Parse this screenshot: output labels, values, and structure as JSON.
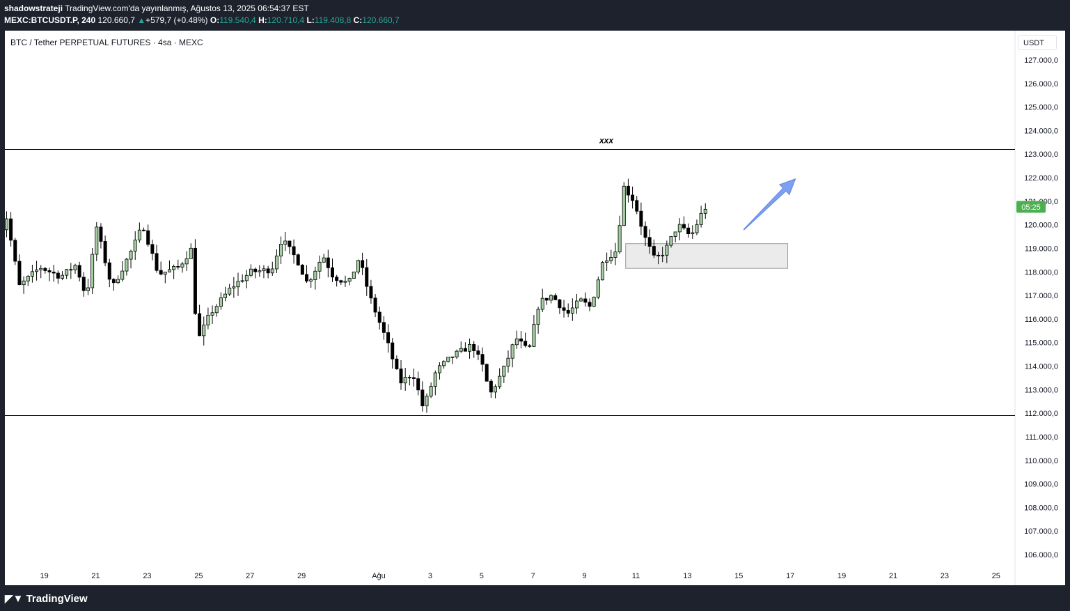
{
  "header": {
    "author": "shadowstrateji",
    "published": "TradingView.com'da yayınlanmış, Ağustos 13, 2025 06:54:37 EST",
    "symbol_line": "MEXC:BTCUSDT.P, 240",
    "last": "120.660,7",
    "change_arrow": "▲",
    "change": "+579,7 (+0.48%)",
    "o_label": "O:",
    "o_value": "119.540,4",
    "h_label": "H:",
    "h_value": "120.710,4",
    "l_label": "L:",
    "l_value": "119.408,8",
    "c_label": "C:",
    "c_value": "120.660,7"
  },
  "chart": {
    "title": "BTC / Tether PERPETUAL FUTURES · 4sa · MEXC",
    "currency": "USDT",
    "countdown": "05:25",
    "annotation": "xxx"
  },
  "chart_data": {
    "type": "candlestick",
    "title": "BTC / Tether PERPETUAL FUTURES · 4sa · MEXC",
    "ylim": [
      105500,
      127500
    ],
    "y_ticks": [
      "127.000,0",
      "126.000,0",
      "125.000,0",
      "124.000,0",
      "123.000,0",
      "122.000,0",
      "121.000,0",
      "120.000,0",
      "119.000,0",
      "118.000,0",
      "117.000,0",
      "116.000,0",
      "115.000,0",
      "114.000,0",
      "113.000,0",
      "112.000,0",
      "111.000,0",
      "110.000,0",
      "109.000,0",
      "108.000,0",
      "107.000,0",
      "106.000,0"
    ],
    "y_tick_values": [
      127000,
      126000,
      125000,
      124000,
      123000,
      122000,
      121000,
      120000,
      119000,
      118000,
      117000,
      116000,
      115000,
      114000,
      113000,
      112000,
      111000,
      110000,
      109000,
      108000,
      107000,
      106000
    ],
    "x_ticks": [
      "19",
      "21",
      "23",
      "25",
      "27",
      "29",
      "Ağu",
      "3",
      "5",
      "7",
      "9",
      "11",
      "13",
      "15",
      "17",
      "19",
      "21",
      "23",
      "25"
    ],
    "x_tick_days": [
      -13,
      -11,
      -9,
      -7,
      -5,
      -3,
      0,
      2,
      4,
      6,
      8,
      10,
      12,
      14,
      16,
      18,
      20,
      22,
      24
    ],
    "waypoints": [
      {
        "d": -14.8,
        "p": 119000
      },
      {
        "d": -14.3,
        "p": 120300
      },
      {
        "d": -13.8,
        "p": 117400
      },
      {
        "d": -13,
        "p": 118200
      },
      {
        "d": -12.2,
        "p": 117800
      },
      {
        "d": -11.6,
        "p": 118300
      },
      {
        "d": -11.2,
        "p": 116900
      },
      {
        "d": -10.8,
        "p": 119900
      },
      {
        "d": -10.2,
        "p": 117300
      },
      {
        "d": -9.4,
        "p": 119000
      },
      {
        "d": -9.0,
        "p": 120000
      },
      {
        "d": -8.4,
        "p": 117900
      },
      {
        "d": -7.6,
        "p": 118200
      },
      {
        "d": -7.1,
        "p": 119000
      },
      {
        "d": -6.9,
        "p": 115000
      },
      {
        "d": -6.4,
        "p": 116200
      },
      {
        "d": -5.6,
        "p": 117300
      },
      {
        "d": -4.8,
        "p": 118000
      },
      {
        "d": -4.0,
        "p": 118100
      },
      {
        "d": -3.6,
        "p": 119400
      },
      {
        "d": -3.0,
        "p": 118500
      },
      {
        "d": -2.6,
        "p": 117500
      },
      {
        "d": -2.0,
        "p": 118700
      },
      {
        "d": -1.6,
        "p": 117800
      },
      {
        "d": -1.0,
        "p": 117500
      },
      {
        "d": -0.6,
        "p": 118600
      },
      {
        "d": -0.2,
        "p": 117000
      },
      {
        "d": 0.5,
        "p": 115000
      },
      {
        "d": 1.0,
        "p": 113300
      },
      {
        "d": 1.5,
        "p": 113700
      },
      {
        "d": 1.9,
        "p": 112200
      },
      {
        "d": 2.4,
        "p": 113800
      },
      {
        "d": 3.0,
        "p": 114400
      },
      {
        "d": 3.8,
        "p": 114900
      },
      {
        "d": 4.2,
        "p": 114000
      },
      {
        "d": 4.5,
        "p": 112800
      },
      {
        "d": 5.0,
        "p": 113800
      },
      {
        "d": 5.5,
        "p": 115200
      },
      {
        "d": 6.0,
        "p": 114600
      },
      {
        "d": 6.4,
        "p": 116700
      },
      {
        "d": 6.9,
        "p": 117000
      },
      {
        "d": 7.5,
        "p": 116200
      },
      {
        "d": 8.0,
        "p": 116800
      },
      {
        "d": 8.4,
        "p": 116500
      },
      {
        "d": 8.9,
        "p": 118500
      },
      {
        "d": 9.4,
        "p": 118900
      },
      {
        "d": 9.7,
        "p": 121600
      },
      {
        "d": 10.1,
        "p": 121000
      },
      {
        "d": 10.5,
        "p": 119500
      },
      {
        "d": 10.9,
        "p": 118500
      },
      {
        "d": 11.3,
        "p": 118900
      },
      {
        "d": 11.8,
        "p": 120000
      },
      {
        "d": 12.3,
        "p": 119500
      },
      {
        "d": 12.8,
        "p": 120660
      }
    ],
    "levels": [
      {
        "value": 123200,
        "label": "xxx"
      },
      {
        "value": 111900
      }
    ],
    "zone": {
      "d_start": 9.6,
      "d_end": 15.9,
      "top": 119200,
      "bottom": 118150
    },
    "arrow": {
      "d_start": 14.2,
      "p_start": 119800,
      "d_end": 16.2,
      "p_end": 121950
    },
    "last_price": 120660.7,
    "last_price_label": "05:25",
    "colors": {
      "up_fill": "#a3cfa1",
      "down_fill": "#000000",
      "outline": "#000000",
      "arrow": "#7ea0f0",
      "zone_fill": "#ebebeb",
      "zone_border": "#9e9e9e",
      "price_tag": "#4caf50"
    }
  },
  "footer": {
    "logo": "TradingView"
  }
}
